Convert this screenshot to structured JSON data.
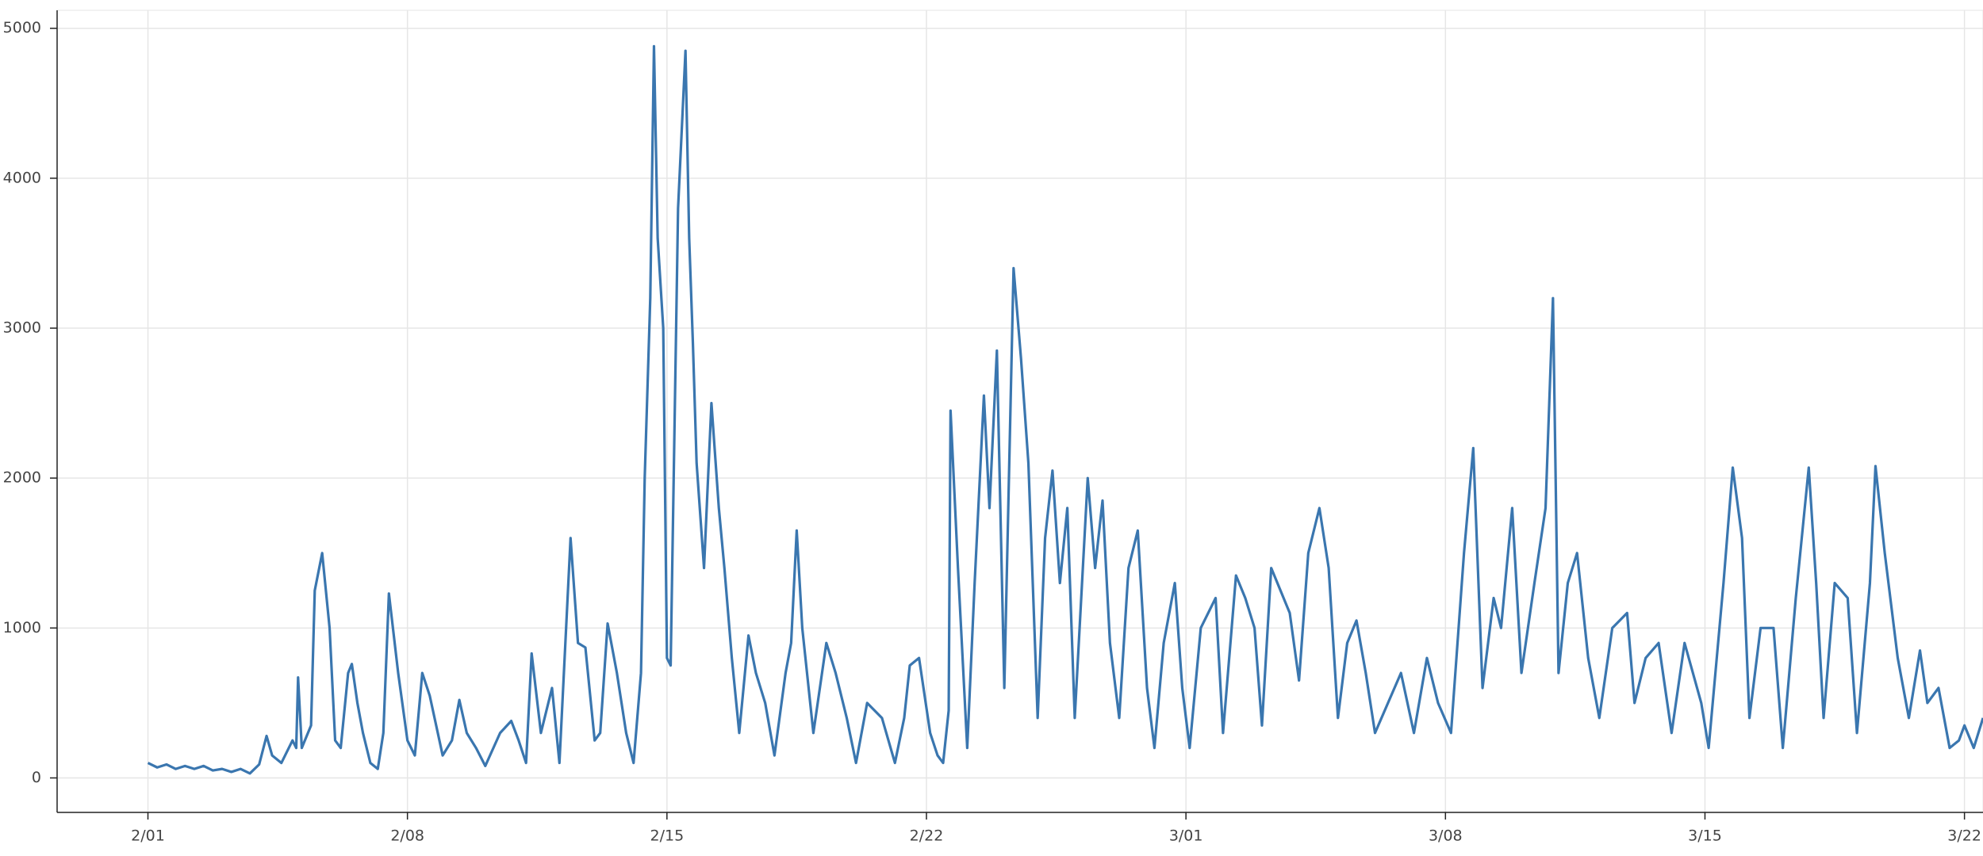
{
  "chart_data": {
    "type": "line",
    "color": "#3a76af",
    "grid": true,
    "xlim": [
      -2.45,
      49.5
    ],
    "xticks": [
      {
        "value": 0,
        "label": "2/01"
      },
      {
        "value": 7,
        "label": "2/08"
      },
      {
        "value": 14,
        "label": "2/15"
      },
      {
        "value": 21,
        "label": "2/22"
      },
      {
        "value": 28,
        "label": "3/01"
      },
      {
        "value": 35,
        "label": "3/08"
      },
      {
        "value": 42,
        "label": "3/15"
      },
      {
        "value": 49,
        "label": "3/22"
      }
    ],
    "ylim": [
      -230,
      5120
    ],
    "yticks": [
      0,
      1000,
      2000,
      3000,
      4000,
      5000
    ],
    "x": [
      0,
      0.25,
      0.5,
      0.75,
      1,
      1.25,
      1.5,
      1.75,
      2,
      2.25,
      2.5,
      2.75,
      3,
      3.2,
      3.35,
      3.6,
      3.9,
      4.0,
      4.05,
      4.15,
      4.4,
      4.5,
      4.7,
      4.9,
      5.05,
      5.2,
      5.4,
      5.5,
      5.65,
      5.8,
      6.0,
      6.2,
      6.35,
      6.5,
      6.75,
      7.0,
      7.2,
      7.4,
      7.6,
      7.95,
      8.2,
      8.4,
      8.6,
      8.85,
      9.1,
      9.5,
      9.8,
      10.0,
      10.2,
      10.35,
      10.6,
      10.9,
      11.1,
      11.4,
      11.6,
      11.8,
      12.05,
      12.2,
      12.4,
      12.65,
      12.9,
      13.1,
      13.3,
      13.4,
      13.55,
      13.65,
      13.75,
      13.9,
      14.0,
      14.1,
      14.3,
      14.5,
      14.6,
      14.7,
      14.8,
      15.0,
      15.2,
      15.4,
      15.55,
      15.75,
      15.95,
      16.2,
      16.4,
      16.65,
      16.9,
      17.2,
      17.35,
      17.5,
      17.65,
      17.95,
      18.3,
      18.55,
      18.85,
      19.1,
      19.4,
      19.8,
      20.15,
      20.4,
      20.55,
      20.8,
      21.1,
      21.3,
      21.45,
      21.6,
      21.65,
      21.85,
      22.1,
      22.3,
      22.55,
      22.7,
      22.9,
      23.1,
      23.35,
      23.55,
      23.75,
      24.0,
      24.2,
      24.4,
      24.6,
      24.8,
      25.0,
      25.35,
      25.55,
      25.75,
      25.95,
      26.2,
      26.45,
      26.7,
      26.95,
      27.15,
      27.4,
      27.7,
      27.9,
      28.1,
      28.4,
      28.8,
      29.0,
      29.35,
      29.6,
      29.85,
      30.05,
      30.3,
      30.55,
      30.8,
      31.05,
      31.3,
      31.6,
      31.85,
      32.1,
      32.35,
      32.6,
      32.85,
      33.1,
      33.45,
      33.8,
      34.15,
      34.5,
      34.8,
      35.15,
      35.5,
      35.75,
      36.0,
      36.3,
      36.5,
      36.8,
      37.05,
      37.4,
      37.7,
      37.9,
      38.05,
      38.3,
      38.55,
      38.85,
      39.15,
      39.5,
      39.9,
      40.1,
      40.4,
      40.75,
      41.1,
      41.45,
      41.9,
      42.1,
      42.5,
      42.75,
      43.0,
      43.2,
      43.5,
      43.85,
      44.1,
      44.45,
      44.8,
      45.0,
      45.2,
      45.5,
      45.85,
      46.1,
      46.45,
      46.6,
      46.85,
      47.2,
      47.5,
      47.8,
      48.0,
      48.3,
      48.6,
      48.85,
      49.0,
      49.25,
      49.5
    ],
    "values": [
      100,
      70,
      90,
      60,
      80,
      60,
      80,
      50,
      60,
      40,
      60,
      30,
      90,
      280,
      150,
      100,
      250,
      200,
      670,
      200,
      350,
      1250,
      1500,
      1000,
      250,
      200,
      700,
      760,
      500,
      300,
      100,
      60,
      300,
      1230,
      700,
      250,
      150,
      700,
      550,
      150,
      250,
      520,
      300,
      200,
      80,
      300,
      380,
      250,
      100,
      830,
      300,
      600,
      100,
      1600,
      900,
      870,
      250,
      300,
      1030,
      700,
      300,
      100,
      700,
      2000,
      3200,
      4880,
      3600,
      3000,
      800,
      750,
      3800,
      4850,
      3600,
      2900,
      2100,
      1400,
      2500,
      1800,
      1400,
      800,
      300,
      950,
      700,
      500,
      150,
      700,
      900,
      1650,
      1000,
      300,
      900,
      700,
      400,
      100,
      500,
      400,
      100,
      400,
      750,
      800,
      300,
      150,
      100,
      450,
      2450,
      1400,
      200,
      1300,
      2550,
      1800,
      2850,
      600,
      3400,
      2800,
      2100,
      400,
      1600,
      2050,
      1300,
      1800,
      400,
      2000,
      1400,
      1850,
      900,
      400,
      1400,
      1650,
      600,
      200,
      900,
      1300,
      600,
      200,
      1000,
      1200,
      300,
      1350,
      1200,
      1000,
      350,
      1400,
      1250,
      1100,
      650,
      1500,
      1800,
      1400,
      400,
      900,
      1050,
      700,
      300,
      500,
      700,
      300,
      800,
      500,
      300,
      1500,
      2200,
      600,
      1200,
      1000,
      1800,
      700,
      1300,
      1800,
      3200,
      700,
      1300,
      1500,
      800,
      400,
      1000,
      1100,
      500,
      800,
      900,
      300,
      900,
      500,
      200,
      1300,
      2070,
      1600,
      400,
      1000,
      1000,
      200,
      1200,
      2070,
      1300,
      400,
      1300,
      1200,
      300,
      1300,
      2080,
      1500,
      800,
      400,
      850,
      500,
      600,
      200,
      250,
      350,
      200,
      400
    ]
  }
}
